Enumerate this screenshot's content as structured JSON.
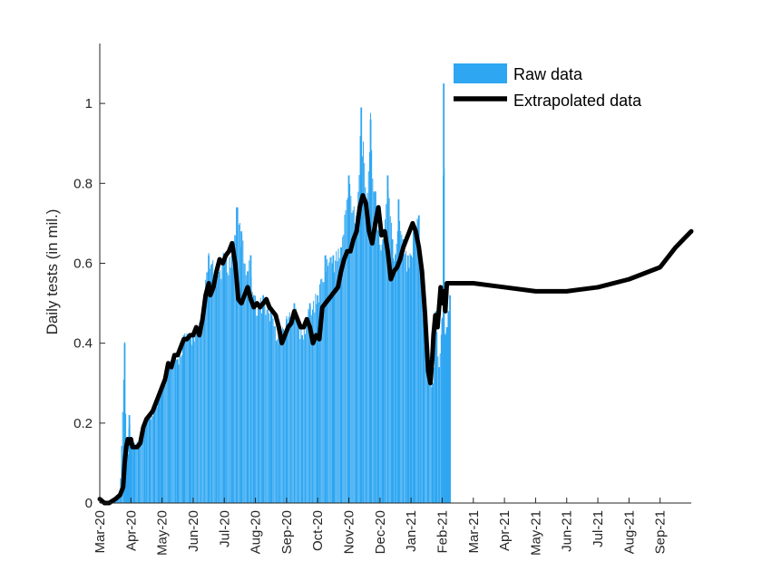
{
  "chart_data": {
    "type": "bar",
    "title": "",
    "xlabel": "",
    "ylabel": "Daily tests (in mil.)",
    "ylim": [
      0,
      1.15
    ],
    "yticks": [
      0,
      0.2,
      0.4,
      0.6,
      0.8,
      1
    ],
    "ytick_labels": [
      "0",
      "0.2",
      "0.4",
      "0.6",
      "0.8",
      "1"
    ],
    "x_months": [
      "Mar-20",
      "Apr-20",
      "May-20",
      "Jun-20",
      "Jul-20",
      "Aug-20",
      "Sep-20",
      "Oct-20",
      "Nov-20",
      "Dec-20",
      "Jan-21",
      "Feb-21",
      "Mar-21",
      "Apr-21",
      "May-21",
      "Jun-21",
      "Jul-21",
      "Aug-21",
      "Sep-21"
    ],
    "x_range_months": [
      0,
      19
    ],
    "legend_position": "top-right",
    "colors": {
      "bars": "#2EA6F2",
      "line": "#000000",
      "axis": "#262626"
    },
    "series": [
      {
        "name": "Raw data",
        "kind": "bar",
        "x_months": [
          0.0,
          0.25,
          0.5,
          0.65,
          0.8,
          0.85,
          0.9,
          0.95,
          1.0,
          1.1,
          1.25,
          1.45,
          1.6,
          1.75,
          1.9,
          2.0,
          2.25,
          2.5,
          2.7,
          2.9,
          3.0,
          3.25,
          3.5,
          3.75,
          4.0,
          4.25,
          4.4,
          4.55,
          4.75,
          4.85,
          4.95,
          5.1,
          5.25,
          5.5,
          5.75,
          6.0,
          6.25,
          6.5,
          6.75,
          7.0,
          7.25,
          7.5,
          7.75,
          8.0,
          8.25,
          8.4,
          8.55,
          8.7,
          8.85,
          8.95,
          9.1,
          9.25,
          9.4,
          9.5,
          9.6,
          9.75,
          9.9,
          10.0,
          10.1,
          10.25,
          10.4,
          10.55,
          10.7,
          10.8,
          10.9,
          11.0,
          11.05,
          11.1,
          11.15,
          11.2,
          11.25
        ],
        "values": [
          0.0,
          0.0,
          0.01,
          0.02,
          0.4,
          0.14,
          0.12,
          0.22,
          0.16,
          0.15,
          0.15,
          0.2,
          0.22,
          0.24,
          0.27,
          0.3,
          0.35,
          0.36,
          0.42,
          0.42,
          0.43,
          0.45,
          0.62,
          0.58,
          0.62,
          0.62,
          0.74,
          0.68,
          0.58,
          0.62,
          0.52,
          0.5,
          0.52,
          0.48,
          0.42,
          0.46,
          0.5,
          0.42,
          0.5,
          0.52,
          0.62,
          0.62,
          0.64,
          0.82,
          0.72,
          0.99,
          0.76,
          0.96,
          0.78,
          0.68,
          0.66,
          0.82,
          0.66,
          0.62,
          0.76,
          0.66,
          0.62,
          0.62,
          0.7,
          0.72,
          0.46,
          0.34,
          0.3,
          0.48,
          0.34,
          0.46,
          1.05,
          0.42,
          0.44,
          0.48,
          0.52
        ]
      },
      {
        "name": "Extrapolated data",
        "kind": "line",
        "x_months": [
          0.0,
          0.15,
          0.3,
          0.5,
          0.65,
          0.75,
          0.8,
          0.85,
          0.9,
          0.95,
          1.0,
          1.05,
          1.1,
          1.2,
          1.3,
          1.4,
          1.5,
          1.6,
          1.7,
          1.8,
          1.9,
          2.0,
          2.1,
          2.2,
          2.3,
          2.4,
          2.5,
          2.6,
          2.7,
          2.8,
          2.9,
          3.0,
          3.1,
          3.2,
          3.3,
          3.4,
          3.5,
          3.55,
          3.65,
          3.75,
          3.85,
          3.95,
          4.05,
          4.15,
          4.25,
          4.35,
          4.45,
          4.55,
          4.65,
          4.75,
          4.85,
          4.95,
          5.05,
          5.15,
          5.25,
          5.35,
          5.45,
          5.55,
          5.65,
          5.75,
          5.85,
          5.95,
          6.05,
          6.15,
          6.25,
          6.35,
          6.45,
          6.55,
          6.65,
          6.75,
          6.85,
          6.95,
          7.05,
          7.15,
          7.25,
          7.35,
          7.45,
          7.55,
          7.65,
          7.75,
          7.85,
          7.95,
          8.05,
          8.15,
          8.25,
          8.35,
          8.45,
          8.55,
          8.65,
          8.75,
          8.85,
          8.95,
          9.05,
          9.15,
          9.25,
          9.35,
          9.45,
          9.55,
          9.65,
          9.75,
          9.85,
          9.95,
          10.05,
          10.15,
          10.25,
          10.35,
          10.45,
          10.55,
          10.62,
          10.68,
          10.72,
          10.78,
          10.85,
          10.9,
          10.95,
          11.0,
          11.05,
          11.1,
          11.15,
          11.2,
          11.25,
          11.5,
          12.0,
          13.0,
          14.0,
          15.0,
          16.0,
          17.0,
          18.0,
          18.5,
          19.0
        ],
        "values": [
          0.01,
          0.0,
          0.0,
          0.01,
          0.02,
          0.04,
          0.1,
          0.14,
          0.16,
          0.15,
          0.16,
          0.14,
          0.14,
          0.14,
          0.15,
          0.19,
          0.21,
          0.22,
          0.23,
          0.25,
          0.27,
          0.29,
          0.31,
          0.35,
          0.34,
          0.37,
          0.37,
          0.39,
          0.41,
          0.41,
          0.42,
          0.42,
          0.44,
          0.42,
          0.46,
          0.52,
          0.55,
          0.52,
          0.54,
          0.58,
          0.61,
          0.6,
          0.62,
          0.63,
          0.65,
          0.6,
          0.51,
          0.5,
          0.52,
          0.54,
          0.51,
          0.49,
          0.5,
          0.49,
          0.5,
          0.51,
          0.49,
          0.48,
          0.47,
          0.44,
          0.4,
          0.42,
          0.44,
          0.45,
          0.48,
          0.46,
          0.44,
          0.44,
          0.46,
          0.44,
          0.4,
          0.42,
          0.41,
          0.49,
          0.5,
          0.51,
          0.52,
          0.53,
          0.54,
          0.58,
          0.61,
          0.63,
          0.63,
          0.66,
          0.68,
          0.74,
          0.77,
          0.75,
          0.68,
          0.65,
          0.7,
          0.74,
          0.67,
          0.68,
          0.63,
          0.56,
          0.58,
          0.59,
          0.61,
          0.64,
          0.66,
          0.68,
          0.7,
          0.68,
          0.64,
          0.58,
          0.47,
          0.33,
          0.3,
          0.36,
          0.42,
          0.47,
          0.44,
          0.49,
          0.54,
          0.5,
          0.53,
          0.48,
          0.55,
          0.55,
          0.55,
          0.55,
          0.55,
          0.54,
          0.53,
          0.53,
          0.54,
          0.56,
          0.59,
          0.64,
          0.68
        ]
      }
    ],
    "legend": [
      {
        "label": "Raw data",
        "symbol": "bar"
      },
      {
        "label": "Extrapolated data",
        "symbol": "line"
      }
    ]
  }
}
